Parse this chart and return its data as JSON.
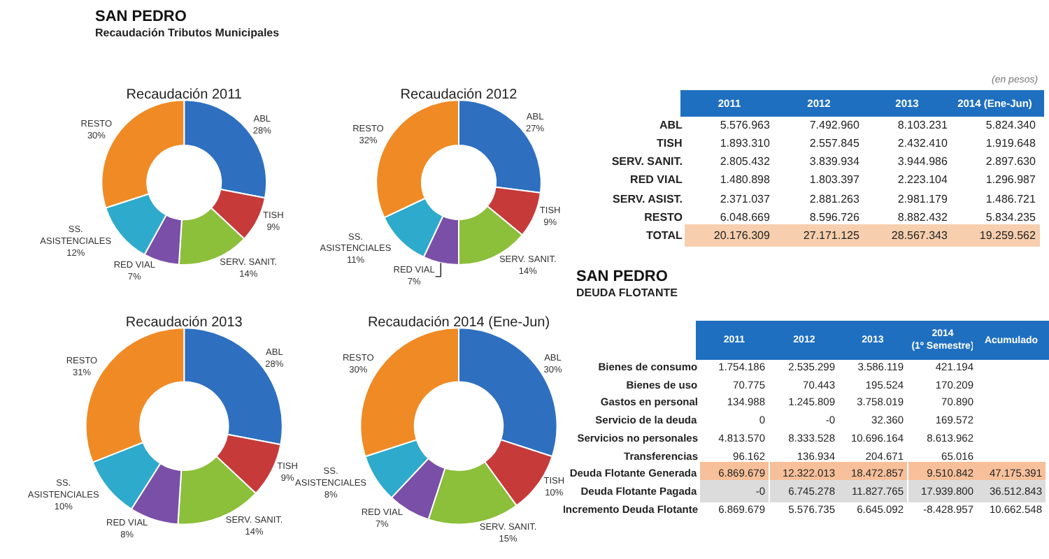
{
  "chart_data": [
    {
      "type": "other",
      "title": "SAN PEDRO",
      "subtitle": "Recaudación Tributos Municipales"
    },
    {
      "type": "donut",
      "title": "Recaudación 2011",
      "categories": [
        "ABL",
        "TISH",
        "SERV. SANIT.",
        "RED VIAL",
        "SS.\nASISTENCIALES",
        "RESTO"
      ],
      "values": [
        28,
        9,
        14,
        7,
        12,
        30
      ],
      "value_labels": [
        "28%",
        "9%",
        "14%",
        "7%",
        "12%",
        "30%"
      ],
      "colors": [
        "#2e6fc0",
        "#c63a3a",
        "#8cbf3a",
        "#7a4fa8",
        "#2eaacc",
        "#f08a24"
      ]
    },
    {
      "type": "donut",
      "title": "Recaudación 2012",
      "categories": [
        "ABL",
        "TISH",
        "SERV. SANIT.",
        "RED VIAL",
        "SS.\nASISTENCIALES",
        "RESTO"
      ],
      "values": [
        27,
        9,
        14,
        7,
        11,
        32
      ],
      "value_labels": [
        "27%",
        "9%",
        "14%",
        "7%",
        "11%",
        "32%"
      ],
      "colors": [
        "#2e6fc0",
        "#c63a3a",
        "#8cbf3a",
        "#7a4fa8",
        "#2eaacc",
        "#f08a24"
      ]
    },
    {
      "type": "other",
      "annotations": [
        "(en pesos)"
      ],
      "categories": [
        "2011",
        "2012",
        "2013",
        "2014 (Ene-Jun)"
      ],
      "y_categories": [
        "ABL",
        "TISH",
        "SERV. SANIT.",
        "RED VIAL",
        "SERV. ASIST.",
        "RESTO",
        "TOTAL"
      ],
      "cell_labels": [
        [
          "5.576.963",
          "7.492.960",
          "8.103.231",
          "5.824.340"
        ],
        [
          "1.893.310",
          "2.557.845",
          "2.432.410",
          "1.919.648"
        ],
        [
          "2.805.432",
          "3.839.934",
          "3.944.986",
          "2.897.630"
        ],
        [
          "1.480.898",
          "1.803.397",
          "2.223.104",
          "1.296.987"
        ],
        [
          "2.371.037",
          "2.881.263",
          "2.981.179",
          "1.486.721"
        ],
        [
          "6.048.669",
          "8.596.726",
          "8.882.432",
          "5.834.235"
        ],
        [
          "20.176.309",
          "27.171.125",
          "28.567.343",
          "19.259.562"
        ]
      ]
    },
    {
      "type": "donut",
      "title": "Recaudación 2013",
      "categories": [
        "ABL",
        "TISH",
        "SERV. SANIT.",
        "RED VIAL",
        "SS.\nASISTENCIALES",
        "RESTO"
      ],
      "values": [
        28,
        9,
        14,
        8,
        10,
        31
      ],
      "value_labels": [
        "28%",
        "9%",
        "14%",
        "8%",
        "10%",
        "31%"
      ],
      "colors": [
        "#2e6fc0",
        "#c63a3a",
        "#8cbf3a",
        "#7a4fa8",
        "#2eaacc",
        "#f08a24"
      ]
    },
    {
      "type": "donut",
      "title": "Recaudación 2014 (Ene-Jun)",
      "categories": [
        "ABL",
        "TISH",
        "SERV. SANIT.",
        "RED VIAL",
        "SS.\nASISTENCIALES",
        "RESTO"
      ],
      "values": [
        30,
        10,
        15,
        7,
        8,
        30
      ],
      "value_labels": [
        "30%",
        "10%",
        "15%",
        "7%",
        "8%",
        "30%"
      ],
      "colors": [
        "#2e6fc0",
        "#c63a3a",
        "#8cbf3a",
        "#7a4fa8",
        "#2eaacc",
        "#f08a24"
      ]
    },
    {
      "type": "other",
      "title": "SAN PEDRO",
      "subtitle": "DEUDA FLOTANTE",
      "categories": [
        "2011",
        "2012",
        "2013",
        "2014\n(1º Semestre)",
        "Acumulado"
      ],
      "y_categories": [
        "Bienes de consumo",
        "Bienes de uso",
        "Gastos en personal",
        "Servicio de la deuda",
        "Servicios no personales",
        "Transferencias",
        "Deuda Flotante Generada",
        "Deuda Flotante Pagada",
        "Incremento Deuda Flotante"
      ],
      "cell_labels": [
        [
          "1.754.186",
          "2.535.299",
          "3.586.119",
          "421.194",
          null
        ],
        [
          "70.775",
          "70.443",
          "195.524",
          "170.209",
          null
        ],
        [
          "134.988",
          "1.245.809",
          "3.758.019",
          "70.890",
          null
        ],
        [
          "0",
          "-0",
          "32.360",
          "169.572",
          null
        ],
        [
          "4.813.570",
          "8.333.528",
          "10.696.164",
          "8.613.962",
          null
        ],
        [
          "96.162",
          "136.934",
          "204.671",
          "65.016",
          null
        ],
        [
          "6.869.679",
          "12.322.013",
          "18.472.857",
          "9.510.842",
          "47.175.391"
        ],
        [
          "-0",
          "6.745.278",
          "11.827.765",
          "17.939.800",
          "36.512.843"
        ],
        [
          "6.869.679",
          "5.576.735",
          "6.645.092",
          "-8.428.957",
          "10.662.548"
        ]
      ]
    }
  ]
}
